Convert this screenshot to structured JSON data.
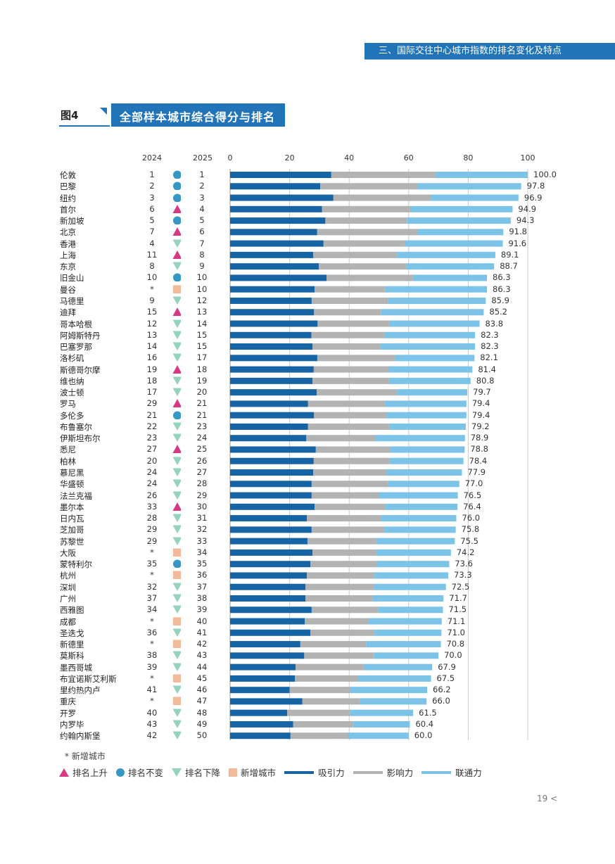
{
  "header": {
    "section_title": "三、国际交往中心城市指数的排名变化及特点"
  },
  "figure": {
    "label": "图4",
    "title": "全部样本城市综合得分与排名"
  },
  "columns": {
    "year_prev": "2024",
    "year_curr": "2025"
  },
  "colors": {
    "attraction": "#1764a5",
    "influence": "#b3b3b3",
    "connectivity": "#7cc3e8",
    "rank_up": "#d63a85",
    "rank_same": "#3698c2",
    "rank_down": "#95d3c0",
    "new_city": "#f2b99b",
    "banner": "#2274b8"
  },
  "chart_data": {
    "type": "bar",
    "orientation": "horizontal",
    "stacked": true,
    "title": "全部样本城市综合得分与排名",
    "xlabel": "",
    "ylabel": "",
    "xlim": [
      0,
      100
    ],
    "xticks": [
      0,
      20,
      40,
      60,
      80,
      100
    ],
    "grid": true,
    "legend_position": "bottom",
    "series_names": [
      "吸引力",
      "影响力",
      "联通力"
    ],
    "categories": [
      "伦敦",
      "巴黎",
      "纽约",
      "首尔",
      "新加坡",
      "北京",
      "香港",
      "上海",
      "东京",
      "旧金山",
      "曼谷",
      "马德里",
      "迪拜",
      "哥本哈根",
      "阿姆斯特丹",
      "巴塞罗那",
      "洛杉矶",
      "斯德哥尔摩",
      "维也纳",
      "波士顿",
      "罗马",
      "多伦多",
      "布鲁塞尔",
      "伊斯坦布尔",
      "悉尼",
      "柏林",
      "慕尼黑",
      "华盛顿",
      "法兰克福",
      "墨尔本",
      "日内瓦",
      "芝加哥",
      "苏黎世",
      "大阪",
      "蒙特利尔",
      "杭州",
      "深圳",
      "广州",
      "西雅图",
      "成都",
      "圣迭戈",
      "新德里",
      "莫斯科",
      "墨西哥城",
      "布宜诺斯艾利斯",
      "里约热内卢",
      "重庆",
      "开罗",
      "内罗毕",
      "约翰内斯堡"
    ],
    "rank_2024": [
      "1",
      "2",
      "3",
      "6",
      "5",
      "7",
      "4",
      "11",
      "8",
      "10",
      "*",
      "9",
      "15",
      "12",
      "13",
      "14",
      "16",
      "19",
      "18",
      "17",
      "29",
      "21",
      "22",
      "23",
      "27",
      "20",
      "24",
      "24",
      "26",
      "33",
      "28",
      "29",
      "29",
      "*",
      "35",
      "*",
      "32",
      "37",
      "34",
      "*",
      "36",
      "*",
      "38",
      "39",
      "*",
      "41",
      "*",
      "40",
      "43",
      "42"
    ],
    "rank_2025": [
      "1",
      "2",
      "3",
      "4",
      "5",
      "6",
      "7",
      "8",
      "9",
      "10",
      "10",
      "12",
      "13",
      "14",
      "15",
      "15",
      "17",
      "18",
      "19",
      "20",
      "21",
      "21",
      "23",
      "24",
      "25",
      "26",
      "27",
      "28",
      "29",
      "30",
      "31",
      "32",
      "33",
      "34",
      "35",
      "36",
      "37",
      "38",
      "39",
      "40",
      "41",
      "42",
      "43",
      "44",
      "45",
      "46",
      "47",
      "48",
      "49",
      "50"
    ],
    "rank_change": [
      "same",
      "same",
      "same",
      "up",
      "same",
      "up",
      "down",
      "up",
      "down",
      "same",
      "new",
      "down",
      "up",
      "down",
      "down",
      "down",
      "down",
      "up",
      "down",
      "down",
      "up",
      "same",
      "down",
      "down",
      "up",
      "down",
      "down",
      "down",
      "down",
      "up",
      "down",
      "down",
      "down",
      "new",
      "same",
      "new",
      "down",
      "down",
      "down",
      "new",
      "down",
      "new",
      "down",
      "down",
      "new",
      "down",
      "new",
      "down",
      "down",
      "down"
    ],
    "totals": [
      100.0,
      97.8,
      96.9,
      94.9,
      94.3,
      91.8,
      91.6,
      89.1,
      88.7,
      86.3,
      86.3,
      85.9,
      85.2,
      83.8,
      82.3,
      82.3,
      82.1,
      81.4,
      80.8,
      79.7,
      79.4,
      79.4,
      79.2,
      78.9,
      78.8,
      78.4,
      77.9,
      77.0,
      76.5,
      76.4,
      76.0,
      75.8,
      75.5,
      74.2,
      73.6,
      73.3,
      72.5,
      71.7,
      71.5,
      71.1,
      71.0,
      70.8,
      70.0,
      67.9,
      67.5,
      66.2,
      66.0,
      61.5,
      60.4,
      60.0
    ],
    "series": [
      {
        "name": "吸引力",
        "values": [
          34.0,
          30.3,
          34.7,
          30.9,
          32.0,
          29.2,
          31.4,
          27.9,
          29.8,
          32.4,
          28.4,
          27.4,
          28.2,
          29.4,
          27.3,
          27.7,
          29.3,
          28.1,
          27.7,
          29.1,
          26.2,
          28.2,
          26.2,
          25.6,
          28.8,
          28.1,
          27.9,
          27.4,
          27.4,
          28.4,
          25.8,
          27.4,
          26.0,
          27.7,
          27.0,
          25.8,
          25.3,
          25.3,
          27.4,
          25.1,
          27.0,
          23.6,
          24.9,
          22.0,
          21.8,
          20.0,
          24.3,
          19.2,
          21.2,
          20.3
        ]
      },
      {
        "name": "影响力",
        "values": [
          35.0,
          32.8,
          32.8,
          29.6,
          27.4,
          33.8,
          27.2,
          28.2,
          29.4,
          29.0,
          23.8,
          25.7,
          22.6,
          24.2,
          24.6,
          22.8,
          26.1,
          25.2,
          25.7,
          27.0,
          26.0,
          24.5,
          27.2,
          23.2,
          25.0,
          25.5,
          24.7,
          25.7,
          22.6,
          23.7,
          24.8,
          24.4,
          23.1,
          21.4,
          22.3,
          22.7,
          23.0,
          22.5,
          22.3,
          21.5,
          21.5,
          22.1,
          23.4,
          22.9,
          21.1,
          20.3,
          19.3,
          21.1,
          20.1,
          19.3
        ]
      },
      {
        "name": "联通力",
        "values": [
          31.0,
          34.7,
          29.4,
          34.4,
          34.9,
          28.8,
          33.0,
          33.0,
          29.5,
          24.9,
          34.1,
          32.8,
          34.4,
          30.2,
          30.4,
          31.8,
          26.7,
          28.1,
          27.4,
          23.6,
          27.2,
          26.7,
          25.8,
          30.1,
          25.0,
          24.8,
          25.3,
          23.9,
          26.5,
          24.3,
          25.4,
          24.0,
          26.4,
          25.1,
          24.3,
          24.8,
          24.2,
          23.9,
          21.8,
          24.5,
          22.5,
          25.1,
          21.7,
          23.0,
          24.6,
          25.9,
          22.4,
          21.2,
          19.1,
          20.4
        ]
      }
    ]
  },
  "legend": {
    "note_star": "*",
    "note_text": "新增城市",
    "rank_up": "排名上升",
    "rank_same": "排名不变",
    "rank_down": "排名下降",
    "new_city": "新增城市",
    "attraction": "吸引力",
    "influence": "影响力",
    "connectivity": "联通力"
  },
  "footer": {
    "page_number": "19 <"
  }
}
